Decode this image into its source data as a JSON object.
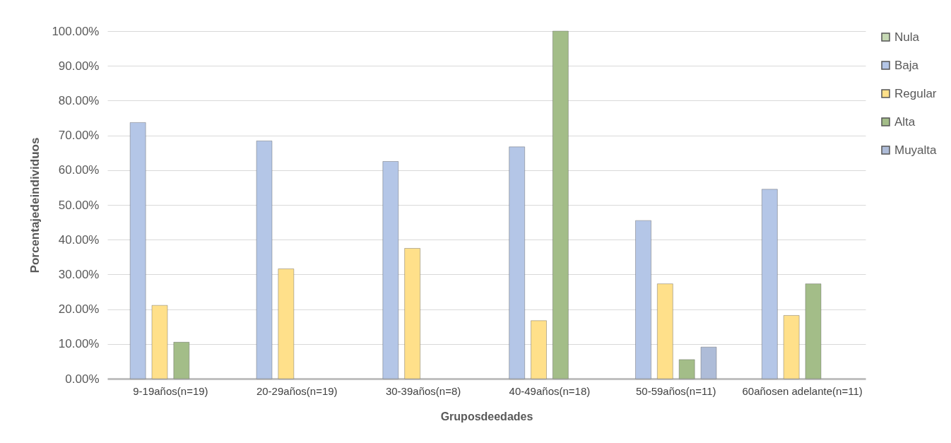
{
  "chart_data": {
    "type": "bar",
    "xlabel": "Gruposdeedades",
    "ylabel": "Porcentajedeindividuos",
    "categories": [
      "9-19años(n=19)",
      "20-29años(n=19)",
      "30-39años(n=8)",
      "40-49años(n=18)",
      "50-59años(n=11)",
      "60añosen adelante(n=11)"
    ],
    "series": [
      {
        "name": "Nula",
        "color": "#c6d9b4",
        "values": [
          null,
          null,
          null,
          null,
          null,
          null
        ]
      },
      {
        "name": "Baja",
        "color": "#b4c6e7",
        "values": [
          73.7,
          68.4,
          62.5,
          66.7,
          45.5,
          54.5
        ]
      },
      {
        "name": "Regular",
        "color": "#ffe08a",
        "values": [
          21.1,
          31.6,
          37.5,
          16.7,
          27.3,
          18.2
        ]
      },
      {
        "name": "Alta",
        "color": "#a3bd88",
        "values": [
          10.5,
          null,
          null,
          100,
          5.5,
          27.3
        ]
      },
      {
        "name": "Muyalta",
        "color": "#aebcd8",
        "values": [
          null,
          null,
          null,
          null,
          9.1,
          null
        ]
      }
    ],
    "ylim": [
      0,
      100
    ],
    "yticks": [
      {
        "value": 0,
        "label": "0.00%"
      },
      {
        "value": 10,
        "label": "10.00%"
      },
      {
        "value": 20,
        "label": "20.00%"
      },
      {
        "value": 30,
        "label": "30.00%"
      },
      {
        "value": 40,
        "label": "40.00%"
      },
      {
        "value": 50,
        "label": "50.00%"
      },
      {
        "value": 60,
        "label": "60.00%"
      },
      {
        "value": 70,
        "label": "70.00%"
      },
      {
        "value": 80,
        "label": "80.00%"
      },
      {
        "value": 90,
        "label": "90.00%"
      },
      {
        "value": 100,
        "label": "100.00%"
      }
    ],
    "grid": "y",
    "legend": "right"
  }
}
